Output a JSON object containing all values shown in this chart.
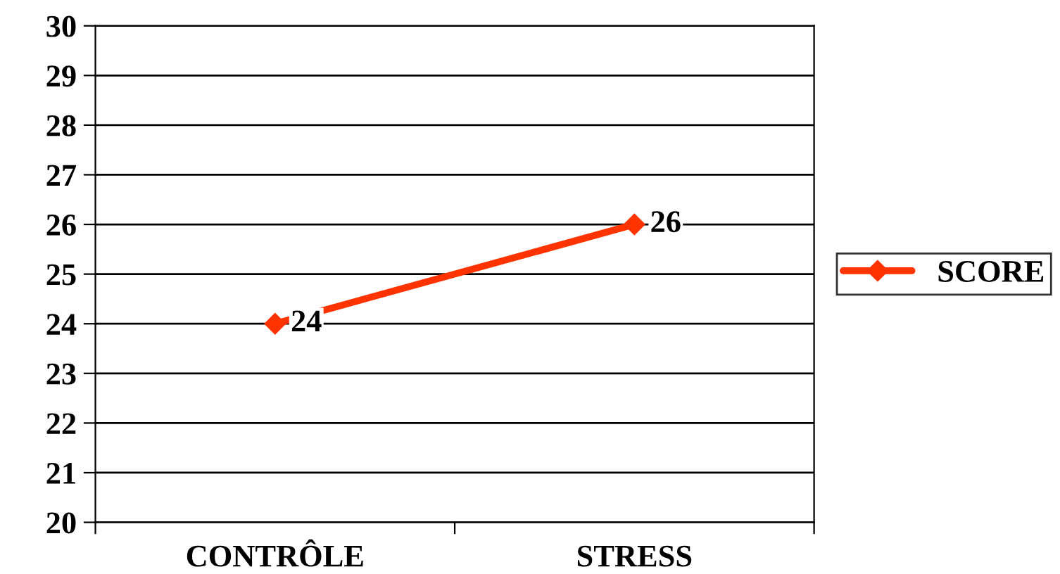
{
  "chart_data": {
    "type": "line",
    "categories": [
      "CONTRÔLE",
      "STRESS"
    ],
    "series": [
      {
        "name": "SCORE",
        "color": "#ff3300",
        "values": [
          24,
          26
        ]
      }
    ],
    "ylim": [
      20,
      30
    ],
    "yticks": [
      20,
      21,
      22,
      23,
      24,
      25,
      26,
      27,
      28,
      29,
      30
    ],
    "grid": "y",
    "legend": "right",
    "marker": "diamond",
    "line_style": "solid",
    "data_labels": true
  }
}
